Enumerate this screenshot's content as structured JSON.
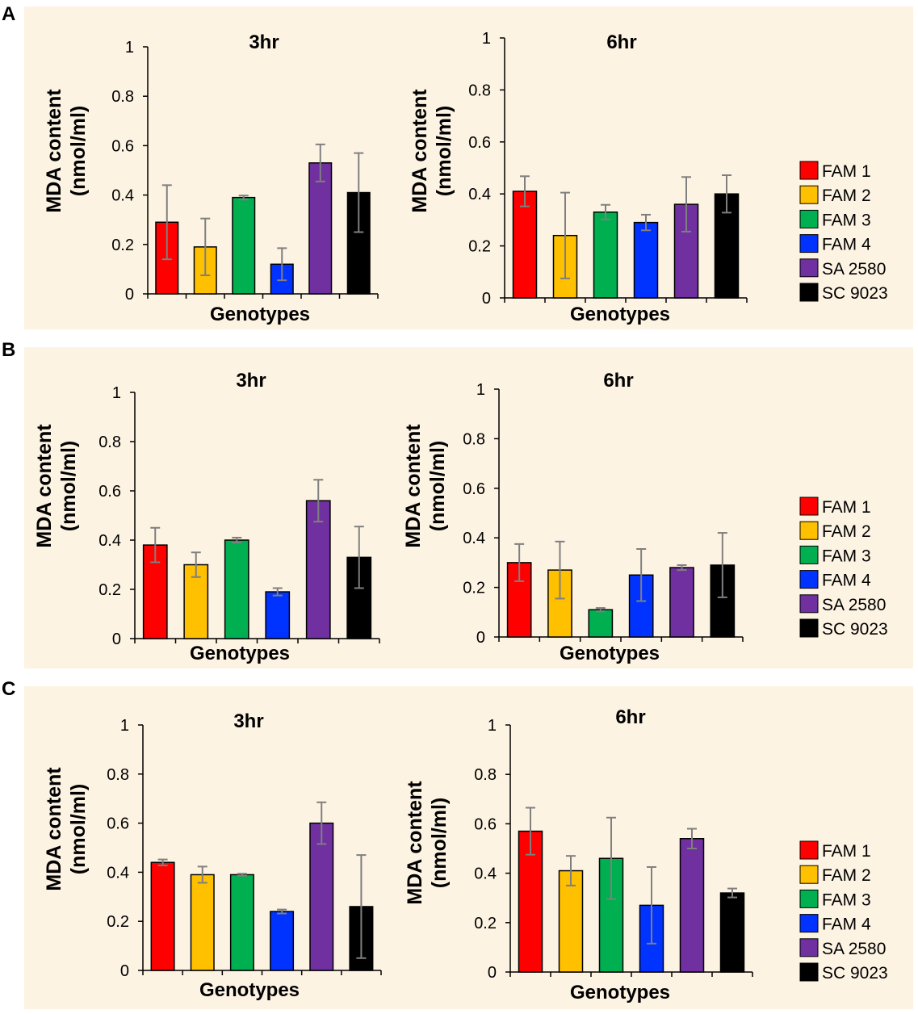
{
  "panels": [
    {
      "letter": "A"
    },
    {
      "letter": "B"
    },
    {
      "letter": "C"
    }
  ],
  "legend": {
    "items": [
      {
        "label": "FAM 1",
        "color": "#ff0000"
      },
      {
        "label": "FAM 2",
        "color": "#ffc000"
      },
      {
        "label": "FAM 3",
        "color": "#00b050"
      },
      {
        "label": "FAM 4",
        "color": "#0033ff"
      },
      {
        "label": "SA 2580",
        "color": "#7030a0"
      },
      {
        "label": "SC 9023",
        "color": "#000000"
      }
    ]
  },
  "chart_data": [
    {
      "panel": "A",
      "type": "bar",
      "title": "3hr",
      "xlabel": "Genotypes",
      "ylabel": [
        "MDA content",
        "(nmol/ml)"
      ],
      "ylim": [
        0,
        1
      ],
      "yticks": [
        "0",
        "0.2",
        "0.4",
        "0.6",
        "0.8",
        "1"
      ],
      "categories": [
        "FAM 1",
        "FAM 2",
        "FAM 3",
        "FAM 4",
        "SA 2580",
        "SC 9023"
      ],
      "values": [
        0.29,
        0.19,
        0.39,
        0.12,
        0.53,
        0.41
      ],
      "errors": [
        0.15,
        0.115,
        0.008,
        0.065,
        0.075,
        0.16
      ]
    },
    {
      "panel": "A",
      "type": "bar",
      "title": "6hr",
      "xlabel": "Genotypes",
      "ylabel": [
        "MDA content",
        "(nmol/ml)"
      ],
      "ylim": [
        0,
        1
      ],
      "yticks": [
        "0",
        "0.2",
        "0.4",
        "0.6",
        "0.8",
        "1"
      ],
      "categories": [
        "FAM 1",
        "FAM 2",
        "FAM 3",
        "FAM 4",
        "SA 2580",
        "SC 9023"
      ],
      "values": [
        0.41,
        0.24,
        0.33,
        0.29,
        0.36,
        0.4
      ],
      "errors": [
        0.058,
        0.165,
        0.028,
        0.03,
        0.105,
        0.072
      ]
    },
    {
      "panel": "B",
      "type": "bar",
      "title": "3hr",
      "xlabel": "Genotypes",
      "ylabel": [
        "MDA content",
        "(nmol/ml)"
      ],
      "ylim": [
        0,
        1
      ],
      "yticks": [
        "0",
        "0.2",
        "0.4",
        "0.6",
        "0.8",
        "1"
      ],
      "categories": [
        "FAM 1",
        "FAM 2",
        "FAM 3",
        "FAM 4",
        "SA 2580",
        "SC 9023"
      ],
      "values": [
        0.38,
        0.3,
        0.4,
        0.19,
        0.56,
        0.33
      ],
      "errors": [
        0.07,
        0.05,
        0.01,
        0.015,
        0.085,
        0.125
      ]
    },
    {
      "panel": "B",
      "type": "bar",
      "title": "6hr",
      "xlabel": "Genotypes",
      "ylabel": [
        "MDA content",
        "(nmol/ml)"
      ],
      "ylim": [
        0,
        1
      ],
      "yticks": [
        "0",
        "0.2",
        "0.4",
        "0.6",
        "0.8",
        "1"
      ],
      "categories": [
        "FAM 1",
        "FAM 2",
        "FAM 3",
        "FAM 4",
        "SA 2580",
        "SC 9023"
      ],
      "values": [
        0.3,
        0.27,
        0.11,
        0.25,
        0.28,
        0.29
      ],
      "errors": [
        0.075,
        0.115,
        0.007,
        0.105,
        0.01,
        0.13
      ]
    },
    {
      "panel": "C",
      "type": "bar",
      "title": "3hr",
      "xlabel": "Genotypes",
      "ylabel": [
        "MDA content",
        "(nmol/ml)"
      ],
      "ylim": [
        0,
        1
      ],
      "yticks": [
        "0",
        "0.2",
        "0.4",
        "0.6",
        "0.8",
        "1"
      ],
      "categories": [
        "FAM 1",
        "FAM 2",
        "FAM 3",
        "FAM 4",
        "SA 2580",
        "SC 9023"
      ],
      "values": [
        0.44,
        0.39,
        0.39,
        0.24,
        0.6,
        0.26
      ],
      "errors": [
        0.012,
        0.033,
        0.004,
        0.008,
        0.085,
        0.21
      ]
    },
    {
      "panel": "C",
      "type": "bar",
      "title": "6hr",
      "xlabel": "Genotypes",
      "ylabel": [
        "MDA content",
        "(nmol/ml)"
      ],
      "ylim": [
        0,
        1
      ],
      "yticks": [
        "0",
        "0.2",
        "0.4",
        "0.6",
        "0.8",
        "1"
      ],
      "categories": [
        "FAM 1",
        "FAM 2",
        "FAM 3",
        "FAM 4",
        "SA 2580",
        "SC 9023"
      ],
      "values": [
        0.57,
        0.41,
        0.46,
        0.27,
        0.54,
        0.32
      ],
      "errors": [
        0.095,
        0.06,
        0.165,
        0.155,
        0.04,
        0.018
      ]
    }
  ]
}
